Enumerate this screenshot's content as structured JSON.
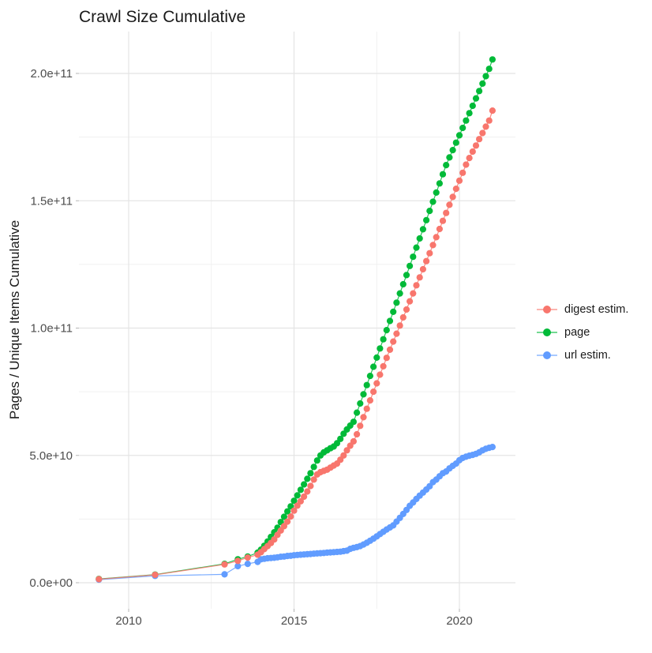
{
  "chart_data": {
    "type": "scatter",
    "title": "Crawl Size Cumulative",
    "xlabel": "",
    "ylabel": "Pages / Unique Items Cumulative",
    "value_unit": "billions (1e9) of pages / unique items",
    "xlim": [
      2008.5,
      2021.7
    ],
    "ylim_billions": [
      0,
      215
    ],
    "grid": "major and minor, light gray on white",
    "legend_position": "right",
    "x_ticks": [
      {
        "v": 2010,
        "label": "2010"
      },
      {
        "v": 2015,
        "label": "2015"
      },
      {
        "v": 2020,
        "label": "2020"
      }
    ],
    "x_minor_ticks": [
      2012.5,
      2017.5
    ],
    "y_ticks": [
      {
        "v": 0,
        "label": "0.0e+00"
      },
      {
        "v": 50,
        "label": "5.0e+10"
      },
      {
        "v": 100,
        "label": "1.0e+11"
      },
      {
        "v": 150,
        "label": "1.5e+11"
      },
      {
        "v": 200,
        "label": "2.0e+11"
      }
    ],
    "y_minor_ticks": [
      25,
      75,
      125,
      175
    ],
    "draw_order": [
      1,
      2,
      0
    ],
    "series": [
      {
        "id": "digest",
        "label": "digest estim.",
        "color": "#F8766D",
        "points": [
          [
            2009.1,
            1.4
          ],
          [
            2010.8,
            3.1
          ],
          [
            2012.9,
            7.2
          ],
          [
            2013.3,
            8.6
          ],
          [
            2013.6,
            9.9
          ],
          [
            2013.9,
            11.0
          ],
          [
            2014.0,
            12.0
          ],
          [
            2014.1,
            13.2
          ],
          [
            2014.2,
            14.4
          ],
          [
            2014.3,
            15.6
          ],
          [
            2014.4,
            17.0
          ],
          [
            2014.5,
            18.8
          ],
          [
            2014.6,
            20.5
          ],
          [
            2014.7,
            22.2
          ],
          [
            2014.8,
            24.0
          ],
          [
            2014.9,
            26.0
          ],
          [
            2015.0,
            28.3
          ],
          [
            2015.1,
            30.3
          ],
          [
            2015.2,
            32.0
          ],
          [
            2015.3,
            33.8
          ],
          [
            2015.4,
            35.8
          ],
          [
            2015.5,
            38.0
          ],
          [
            2015.6,
            40.5
          ],
          [
            2015.7,
            42.5
          ],
          [
            2015.8,
            43.4
          ],
          [
            2015.9,
            43.9
          ],
          [
            2016.0,
            44.4
          ],
          [
            2016.1,
            45.2
          ],
          [
            2016.2,
            46.0
          ],
          [
            2016.3,
            46.8
          ],
          [
            2016.4,
            48.3
          ],
          [
            2016.5,
            50.0
          ],
          [
            2016.6,
            52.0
          ],
          [
            2016.7,
            53.8
          ],
          [
            2016.8,
            55.5
          ],
          [
            2016.9,
            58.3
          ],
          [
            2017.0,
            61.6
          ],
          [
            2017.1,
            65.0
          ],
          [
            2017.2,
            68.3
          ],
          [
            2017.3,
            71.6
          ],
          [
            2017.4,
            75.0
          ],
          [
            2017.5,
            78.3
          ],
          [
            2017.6,
            81.7
          ],
          [
            2017.7,
            85.0
          ],
          [
            2017.8,
            88.3
          ],
          [
            2017.9,
            91.5
          ],
          [
            2018.0,
            94.7
          ],
          [
            2018.1,
            97.8
          ],
          [
            2018.2,
            101.0
          ],
          [
            2018.3,
            104.2
          ],
          [
            2018.4,
            107.3
          ],
          [
            2018.5,
            110.5
          ],
          [
            2018.6,
            113.6
          ],
          [
            2018.7,
            116.8
          ],
          [
            2018.8,
            119.9
          ],
          [
            2018.9,
            123.1
          ],
          [
            2019.0,
            126.3
          ],
          [
            2019.1,
            129.4
          ],
          [
            2019.2,
            132.6
          ],
          [
            2019.3,
            135.7
          ],
          [
            2019.4,
            138.9
          ],
          [
            2019.5,
            142.1
          ],
          [
            2019.6,
            145.2
          ],
          [
            2019.7,
            148.4
          ],
          [
            2019.8,
            151.5
          ],
          [
            2019.9,
            154.7
          ],
          [
            2020.0,
            157.9
          ],
          [
            2020.1,
            161.0
          ],
          [
            2020.2,
            164.2
          ],
          [
            2020.3,
            166.8
          ],
          [
            2020.4,
            169.3
          ],
          [
            2020.5,
            171.7
          ],
          [
            2020.6,
            174.2
          ],
          [
            2020.7,
            176.6
          ],
          [
            2020.8,
            179.1
          ],
          [
            2020.9,
            181.5
          ],
          [
            2021.0,
            185.4
          ]
        ]
      },
      {
        "id": "page",
        "label": "page",
        "color": "#00BA38",
        "points": [
          [
            2009.1,
            1.5
          ],
          [
            2010.8,
            3.2
          ],
          [
            2012.9,
            7.4
          ],
          [
            2013.3,
            9.2
          ],
          [
            2013.6,
            10.3
          ],
          [
            2013.9,
            11.8
          ],
          [
            2014.0,
            13.0
          ],
          [
            2014.1,
            14.5
          ],
          [
            2014.2,
            16.2
          ],
          [
            2014.3,
            18.0
          ],
          [
            2014.4,
            19.8
          ],
          [
            2014.5,
            21.6
          ],
          [
            2014.6,
            23.8
          ],
          [
            2014.7,
            25.9
          ],
          [
            2014.8,
            28.0
          ],
          [
            2014.9,
            30.0
          ],
          [
            2015.0,
            32.2
          ],
          [
            2015.1,
            34.3
          ],
          [
            2015.2,
            36.5
          ],
          [
            2015.3,
            38.6
          ],
          [
            2015.4,
            40.8
          ],
          [
            2015.5,
            43.0
          ],
          [
            2015.6,
            45.5
          ],
          [
            2015.7,
            48.0
          ],
          [
            2015.8,
            50.0
          ],
          [
            2015.9,
            51.2
          ],
          [
            2016.0,
            52.0
          ],
          [
            2016.1,
            52.8
          ],
          [
            2016.2,
            53.5
          ],
          [
            2016.3,
            54.8
          ],
          [
            2016.4,
            56.5
          ],
          [
            2016.5,
            58.5
          ],
          [
            2016.6,
            60.2
          ],
          [
            2016.7,
            61.7
          ],
          [
            2016.8,
            63.2
          ],
          [
            2016.9,
            66.8
          ],
          [
            2017.0,
            70.4
          ],
          [
            2017.1,
            74.0
          ],
          [
            2017.2,
            77.6
          ],
          [
            2017.3,
            81.2
          ],
          [
            2017.4,
            84.8
          ],
          [
            2017.5,
            88.4
          ],
          [
            2017.6,
            92.0
          ],
          [
            2017.7,
            95.6
          ],
          [
            2017.8,
            99.2
          ],
          [
            2017.9,
            102.8
          ],
          [
            2018.0,
            106.4
          ],
          [
            2018.1,
            110.0
          ],
          [
            2018.2,
            113.6
          ],
          [
            2018.3,
            117.2
          ],
          [
            2018.4,
            120.8
          ],
          [
            2018.5,
            124.4
          ],
          [
            2018.6,
            128.0
          ],
          [
            2018.7,
            131.6
          ],
          [
            2018.8,
            135.2
          ],
          [
            2018.9,
            138.8
          ],
          [
            2019.0,
            142.4
          ],
          [
            2019.1,
            146.0
          ],
          [
            2019.2,
            149.6
          ],
          [
            2019.3,
            153.2
          ],
          [
            2019.4,
            156.8
          ],
          [
            2019.5,
            160.4
          ],
          [
            2019.6,
            164.0
          ],
          [
            2019.7,
            167.0
          ],
          [
            2019.8,
            169.9
          ],
          [
            2019.9,
            172.8
          ],
          [
            2020.0,
            175.7
          ],
          [
            2020.1,
            178.6
          ],
          [
            2020.2,
            181.5
          ],
          [
            2020.3,
            184.4
          ],
          [
            2020.4,
            187.3
          ],
          [
            2020.5,
            190.2
          ],
          [
            2020.6,
            193.1
          ],
          [
            2020.7,
            196.0
          ],
          [
            2020.8,
            198.9
          ],
          [
            2020.9,
            201.8
          ],
          [
            2021.0,
            205.5
          ]
        ]
      },
      {
        "id": "url",
        "label": "url estim.",
        "color": "#619CFF",
        "points": [
          [
            2009.1,
            1.2
          ],
          [
            2010.8,
            2.7
          ],
          [
            2012.9,
            3.3
          ],
          [
            2013.3,
            6.5
          ],
          [
            2013.6,
            7.4
          ],
          [
            2013.9,
            8.2
          ],
          [
            2014.0,
            9.2
          ],
          [
            2014.1,
            9.4
          ],
          [
            2014.2,
            9.6
          ],
          [
            2014.3,
            9.7
          ],
          [
            2014.4,
            9.8
          ],
          [
            2014.5,
            10.0
          ],
          [
            2014.6,
            10.2
          ],
          [
            2014.7,
            10.3
          ],
          [
            2014.8,
            10.5
          ],
          [
            2014.9,
            10.6
          ],
          [
            2015.0,
            10.8
          ],
          [
            2015.1,
            10.9
          ],
          [
            2015.2,
            11.0
          ],
          [
            2015.3,
            11.1
          ],
          [
            2015.4,
            11.2
          ],
          [
            2015.5,
            11.3
          ],
          [
            2015.6,
            11.4
          ],
          [
            2015.7,
            11.5
          ],
          [
            2015.8,
            11.6
          ],
          [
            2015.9,
            11.7
          ],
          [
            2016.0,
            11.8
          ],
          [
            2016.1,
            11.9
          ],
          [
            2016.2,
            12.0
          ],
          [
            2016.3,
            12.1
          ],
          [
            2016.4,
            12.2
          ],
          [
            2016.5,
            12.4
          ],
          [
            2016.6,
            12.6
          ],
          [
            2016.7,
            13.3
          ],
          [
            2016.8,
            13.7
          ],
          [
            2016.9,
            14.0
          ],
          [
            2017.0,
            14.4
          ],
          [
            2017.1,
            15.0
          ],
          [
            2017.2,
            15.7
          ],
          [
            2017.3,
            16.5
          ],
          [
            2017.4,
            17.3
          ],
          [
            2017.5,
            18.2
          ],
          [
            2017.6,
            19.1
          ],
          [
            2017.7,
            20.0
          ],
          [
            2017.8,
            20.9
          ],
          [
            2017.9,
            21.7
          ],
          [
            2018.0,
            22.5
          ],
          [
            2018.1,
            24.0
          ],
          [
            2018.2,
            25.5
          ],
          [
            2018.3,
            27.0
          ],
          [
            2018.4,
            28.6
          ],
          [
            2018.5,
            30.2
          ],
          [
            2018.6,
            31.5
          ],
          [
            2018.7,
            32.9
          ],
          [
            2018.8,
            34.2
          ],
          [
            2018.9,
            35.4
          ],
          [
            2019.0,
            36.6
          ],
          [
            2019.1,
            37.9
          ],
          [
            2019.2,
            39.5
          ],
          [
            2019.3,
            40.5
          ],
          [
            2019.4,
            41.8
          ],
          [
            2019.5,
            43.0
          ],
          [
            2019.6,
            43.7
          ],
          [
            2019.7,
            44.9
          ],
          [
            2019.8,
            45.9
          ],
          [
            2019.9,
            46.8
          ],
          [
            2020.0,
            48.1
          ],
          [
            2020.1,
            49.0
          ],
          [
            2020.2,
            49.5
          ],
          [
            2020.3,
            49.9
          ],
          [
            2020.4,
            50.2
          ],
          [
            2020.5,
            50.6
          ],
          [
            2020.6,
            51.2
          ],
          [
            2020.7,
            52.0
          ],
          [
            2020.8,
            52.6
          ],
          [
            2020.9,
            53.0
          ],
          [
            2021.0,
            53.3
          ]
        ]
      }
    ]
  }
}
